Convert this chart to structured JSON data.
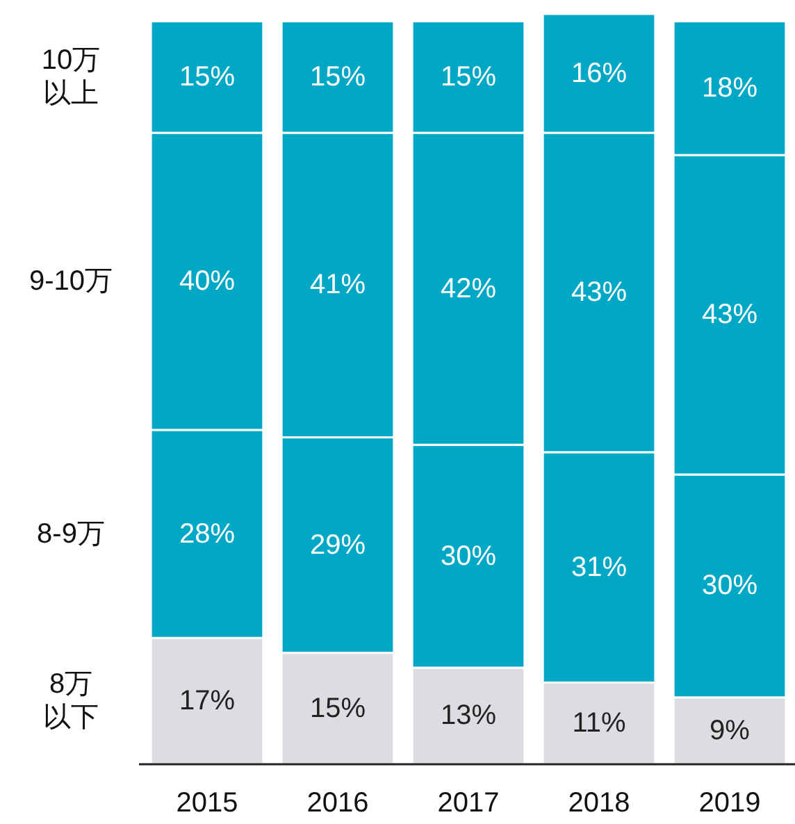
{
  "chart_data": {
    "type": "bar",
    "stacked": true,
    "categories": [
      "2015",
      "2016",
      "2017",
      "2018",
      "2019"
    ],
    "series": [
      {
        "name": "8万以下",
        "color": "#dcdde1",
        "values": [
          17,
          15,
          13,
          11,
          9
        ],
        "value_labels": [
          "17%",
          "15%",
          "13%",
          "11%",
          "9%"
        ]
      },
      {
        "name": "8-9万",
        "color": "#00a8c6",
        "values": [
          28,
          29,
          30,
          31,
          30
        ],
        "value_labels": [
          "28%",
          "29%",
          "30%",
          "31%",
          "30%"
        ]
      },
      {
        "name": "9-10万",
        "color": "#00a8c6",
        "values": [
          40,
          41,
          42,
          43,
          43
        ],
        "value_labels": [
          "40%",
          "41%",
          "42%",
          "43%",
          "43%"
        ]
      },
      {
        "name": "10万以上",
        "color": "#00a8c6",
        "values": [
          15,
          15,
          15,
          16,
          18
        ],
        "value_labels": [
          "15%",
          "15%",
          "15%",
          "16%",
          "18%"
        ]
      }
    ]
  }
}
